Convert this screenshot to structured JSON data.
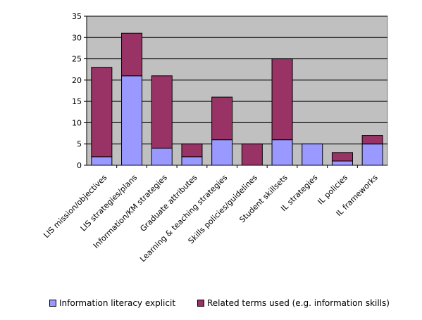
{
  "chart_data": {
    "type": "bar",
    "stacked": true,
    "categories": [
      "LIS mission/objectives",
      "LIS strategies/plans",
      "Information/KM strategies",
      "Graduate attributes",
      "Learning & teaching strategies",
      "Skills policies/guidelines",
      "Student skillsets",
      "IL strategies",
      "IL policies",
      "IL frameworks"
    ],
    "series": [
      {
        "name": "Information literacy explicit",
        "color": "#9999FF",
        "values": [
          2,
          21,
          4,
          2,
          6,
          0,
          6,
          5,
          1,
          5
        ]
      },
      {
        "name": "Related terms used (e.g. information skills)",
        "color": "#993366",
        "values": [
          21,
          10,
          17,
          3,
          10,
          5,
          19,
          0,
          2,
          2
        ]
      }
    ],
    "yticks": [
      "0",
      "5",
      "10",
      "15",
      "20",
      "25",
      "30",
      "35"
    ],
    "ylim": [
      0,
      35
    ],
    "grid": true,
    "plot_background": "#C0C0C0",
    "legend_position": "bottom"
  }
}
